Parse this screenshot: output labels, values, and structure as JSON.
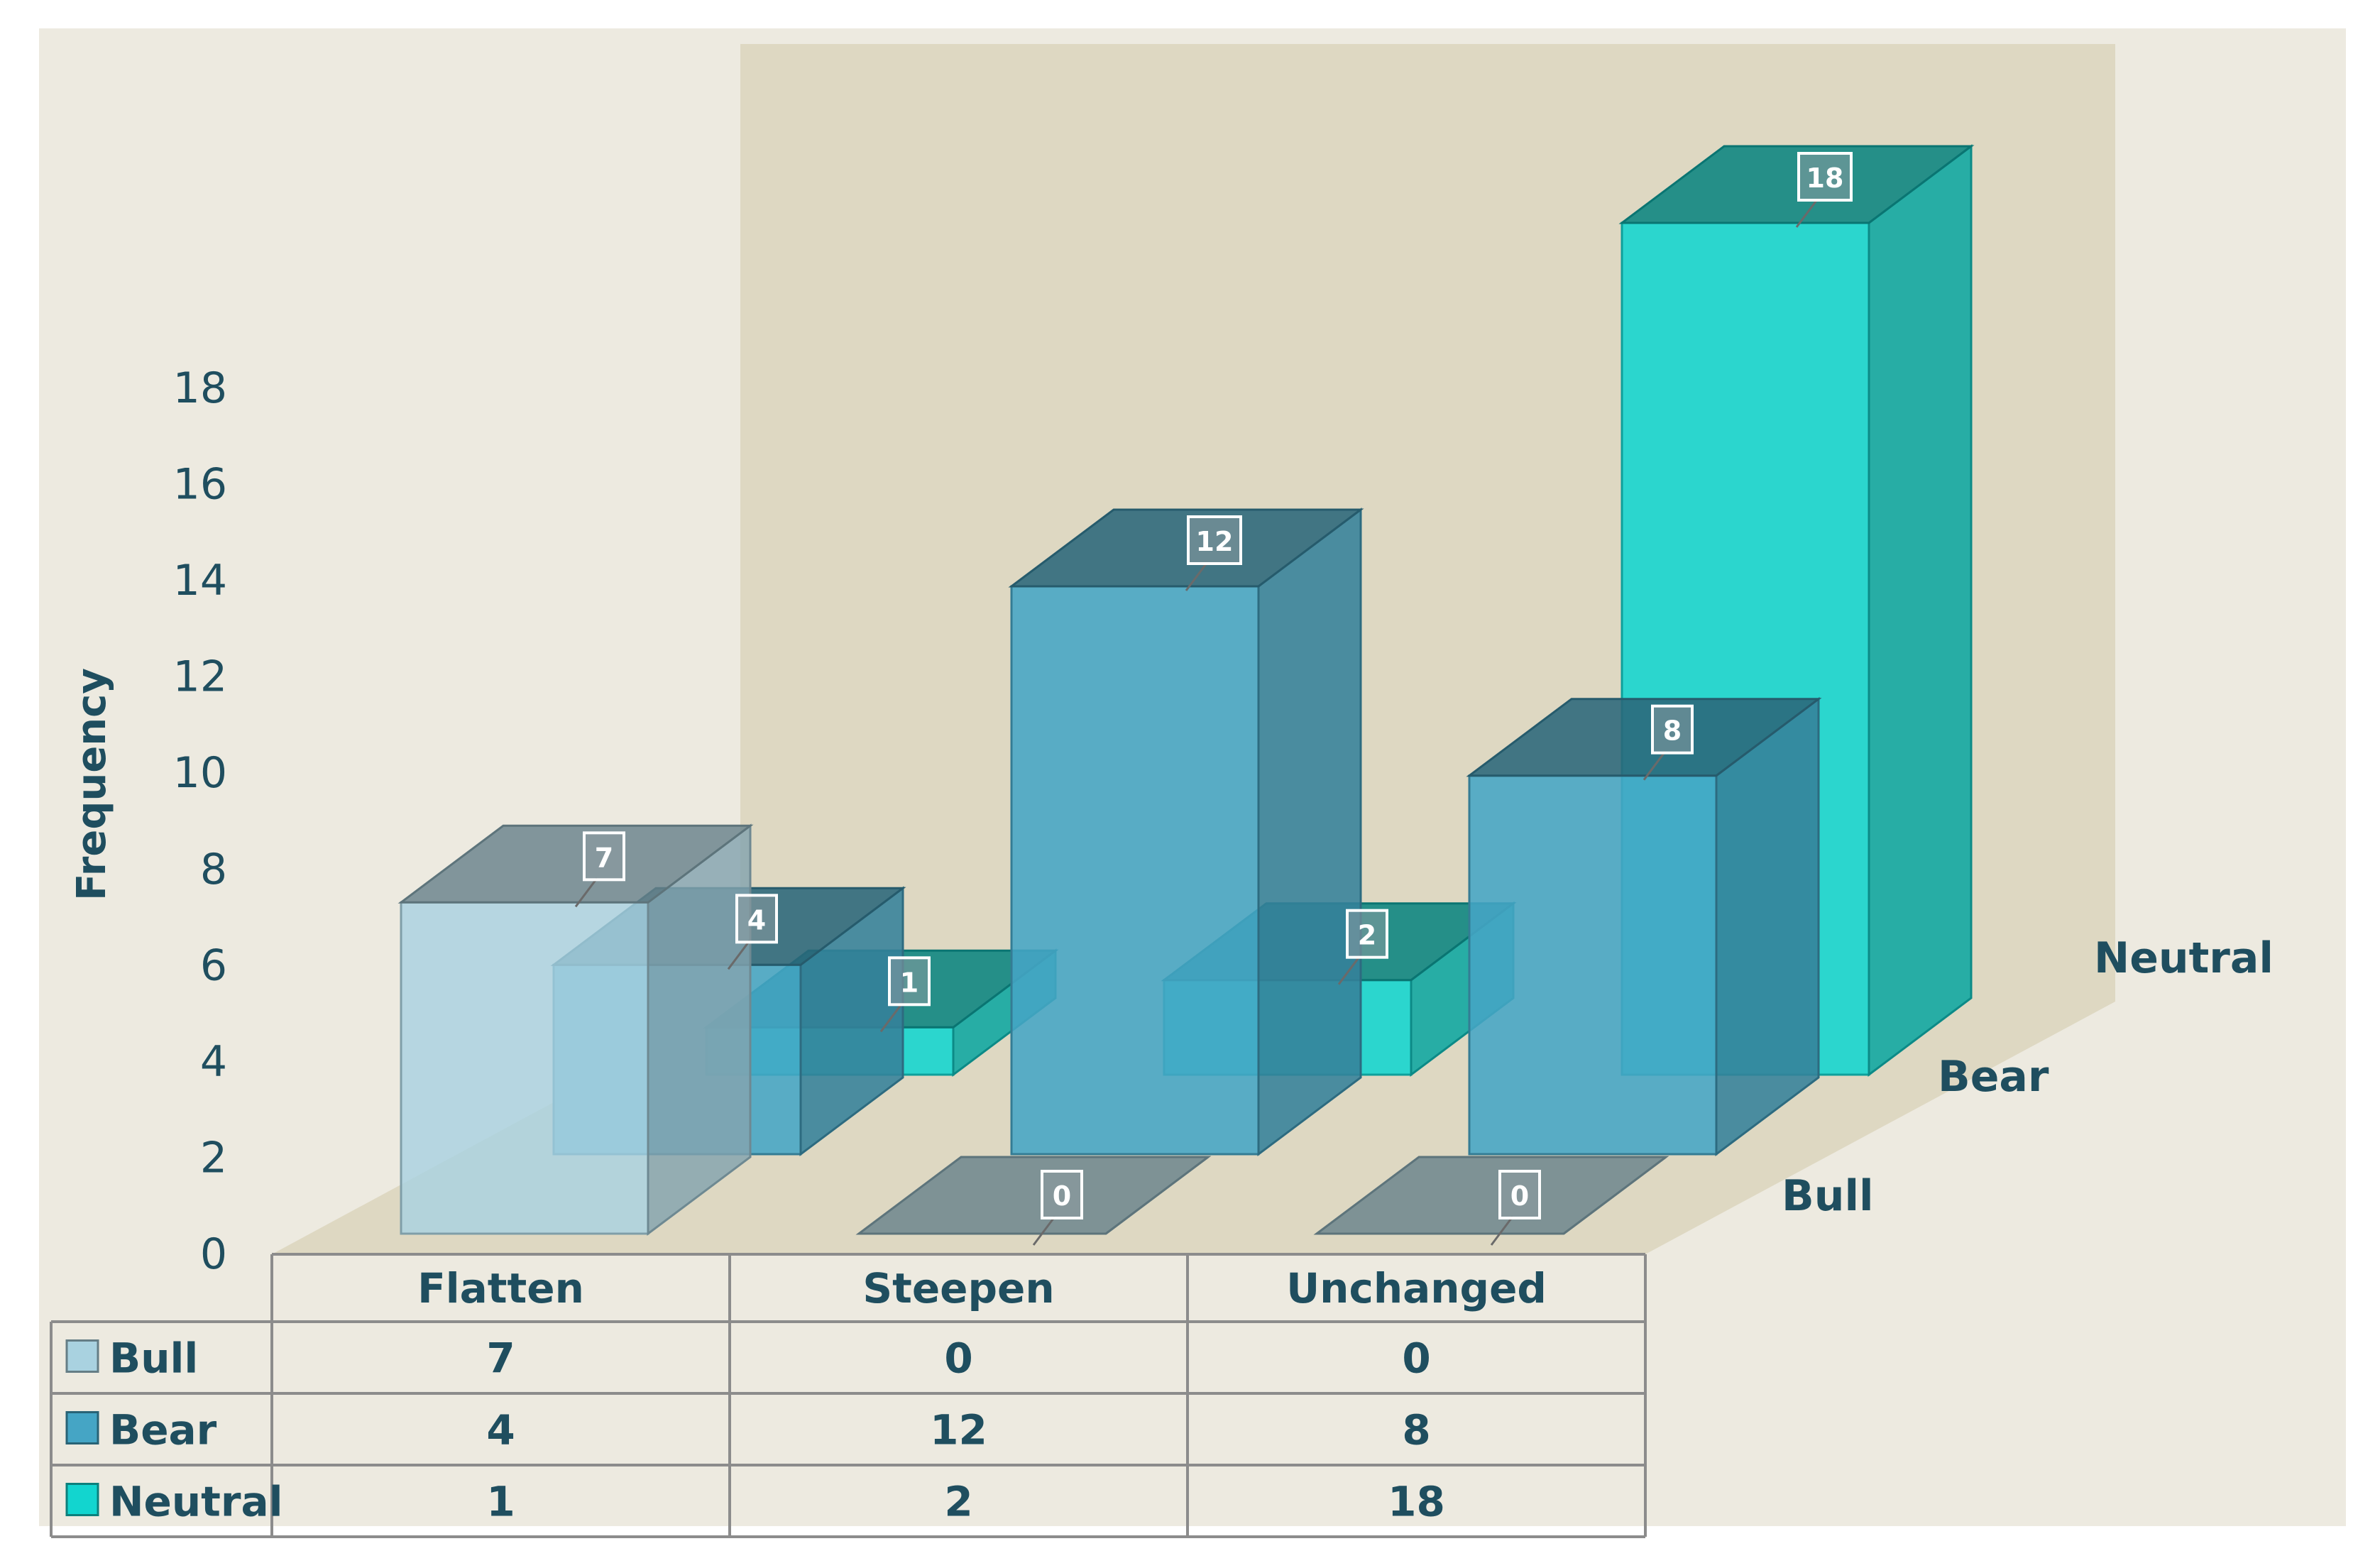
{
  "chart_data": {
    "type": "bar",
    "variant": "3d-column-with-data-table",
    "title": "",
    "xlabel": "",
    "ylabel": "Frequency",
    "ylim": [
      0,
      18
    ],
    "y_ticks": [
      "0",
      "2",
      "4",
      "6",
      "8",
      "10",
      "12",
      "14",
      "16",
      "18"
    ],
    "categories": [
      "Flatten",
      "Steepen",
      "Unchanged"
    ],
    "series": [
      {
        "name": "Bull",
        "values": [
          7,
          0,
          0
        ],
        "color": "#A9D2E0"
      },
      {
        "name": "Bear",
        "values": [
          4,
          12,
          8
        ],
        "color": "#45A5C5"
      },
      {
        "name": "Neutral",
        "values": [
          1,
          2,
          18
        ],
        "color": "#12D5CF"
      }
    ],
    "depth_axis_labels": [
      "Bull",
      "Bear",
      "Neutral"
    ],
    "data_labels_shown": true,
    "data_table_shown": true,
    "grid": false,
    "colors": {
      "background": "#EDEAE0",
      "back_wall": "#DED8C2",
      "floor": "#DED8C2",
      "text": "#1F4E5F",
      "table_border": "#8C8C8C"
    }
  }
}
